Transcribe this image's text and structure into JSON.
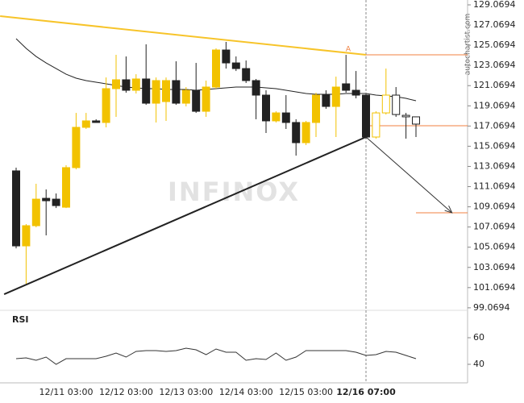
{
  "chart_data": {
    "type": "candlestick",
    "watermark": "INFINOX",
    "credit": "autochartist.com",
    "annotation": "A",
    "categories": [
      null,
      null,
      null,
      null,
      null,
      "12/11 03:00",
      null,
      null,
      null,
      null,
      null,
      "12/12 03:00",
      null,
      null,
      null,
      null,
      null,
      "12/13 03:00",
      null,
      null,
      null,
      null,
      null,
      "12/14 03:00",
      null,
      null,
      null,
      null,
      null,
      "12/15 03:00",
      null,
      null,
      null,
      null,
      null,
      "12/16 07:00",
      null,
      null,
      null,
      null,
      null
    ],
    "open": [
      112.63,
      105.2,
      107.2,
      109.91,
      109.83,
      109.03,
      112.95,
      116.94,
      117.58,
      117.42,
      120.77,
      121.65,
      120.61,
      121.73,
      119.33,
      119.49,
      121.57,
      119.33,
      120.61,
      118.53,
      120.93,
      124.6,
      123.32,
      122.76,
      121.57,
      120.13,
      117.58,
      118.37,
      117.42,
      115.42,
      117.42,
      120.13,
      119.01,
      121.25,
      120.61,
      120.13,
      115.98,
      118.37,
      120.13,
      118.13,
      117.98
    ],
    "high": [
      112.95,
      107.36,
      111.35,
      110.79,
      110.39,
      113.19,
      118.37,
      118.37,
      117.74,
      121.88,
      124.12,
      123.96,
      122.2,
      125.16,
      121.88,
      121.88,
      123.48,
      120.93,
      123.32,
      121.57,
      124.76,
      125.4,
      123.96,
      123.56,
      121.73,
      120.61,
      118.53,
      120.13,
      117.74,
      117.58,
      120.37,
      120.61,
      121.96,
      124.12,
      122.52,
      120.21,
      118.53,
      122.76,
      120.93,
      118.37,
      117.98
    ],
    "low": [
      104.96,
      101.45,
      107.04,
      106.24,
      108.95,
      108.95,
      112.78,
      116.78,
      117.42,
      116.94,
      117.98,
      120.37,
      120.29,
      119.17,
      117.42,
      117.58,
      119.17,
      119.01,
      118.37,
      117.98,
      120.77,
      122.76,
      122.52,
      121.33,
      117.74,
      116.38,
      117.42,
      116.78,
      114.14,
      115.18,
      115.98,
      118.77,
      115.98,
      120.37,
      119.81,
      115.82,
      115.82,
      118.21,
      117.98,
      115.82,
      115.98
    ],
    "close": [
      105.2,
      107.2,
      109.83,
      109.67,
      109.19,
      112.95,
      116.94,
      117.58,
      117.42,
      120.77,
      121.65,
      120.61,
      121.73,
      119.33,
      121.57,
      121.57,
      119.33,
      120.61,
      118.53,
      120.93,
      124.6,
      123.32,
      122.76,
      121.57,
      120.13,
      117.58,
      118.37,
      117.42,
      115.42,
      117.42,
      120.13,
      119.01,
      120.93,
      120.61,
      120.13,
      115.98,
      118.37,
      120.13,
      118.21,
      117.98,
      117.26
    ],
    "moving_average": [
      125.72,
      124.76,
      123.96,
      123.32,
      122.76,
      122.2,
      121.81,
      121.57,
      121.41,
      121.25,
      121.09,
      120.93,
      120.85,
      120.77,
      120.77,
      120.69,
      120.69,
      120.69,
      120.61,
      120.69,
      120.77,
      120.85,
      120.93,
      120.93,
      120.93,
      120.85,
      120.77,
      120.61,
      120.45,
      120.29,
      120.21,
      120.21,
      120.21,
      120.29,
      120.29,
      120.29,
      120.13,
      120.05,
      119.97,
      119.81,
      119.57
    ],
    "up_color": "#f2c200",
    "down_color": "#222222",
    "ma_color": "#222222",
    "trend_lines": [
      {
        "color": "#f7c42a",
        "x": [
          -1.6,
          35
        ],
        "y": [
          127.95,
          124.12
        ]
      },
      {
        "color": "#222222",
        "x": [
          -1.2,
          35
        ],
        "y": [
          100.41,
          115.98
        ]
      },
      {
        "color": "#333333",
        "x": [
          35,
          43.6
        ],
        "y": [
          115.98,
          108.48
        ],
        "arrow": true
      }
    ],
    "levels": [
      {
        "value": 124.12,
        "from": 35,
        "color": "#f08040"
      },
      {
        "value": 117.1,
        "from": 35,
        "color": "#f08040"
      },
      {
        "value": 108.48,
        "from": 40,
        "color": "#f08040"
      }
    ],
    "ylim": [
      98.82,
      129.55
    ],
    "yticks": [
      99.0694,
      101.0694,
      103.0694,
      105.0694,
      107.0694,
      109.0694,
      111.0694,
      113.0694,
      115.0694,
      117.0694,
      119.0694,
      121.0694,
      123.0694,
      125.0694,
      127.0694,
      129.0694
    ],
    "rsi": {
      "label": "RSI",
      "color": "#333333",
      "ylim": [
        30,
        80
      ],
      "yticks": [
        40,
        60
      ],
      "values": [
        44.24,
        44.85,
        43.03,
        45.45,
        40.0,
        44.24,
        44.24,
        44.24,
        44.24,
        46.06,
        48.48,
        45.45,
        49.7,
        50.3,
        50.3,
        49.7,
        50.3,
        52.12,
        50.91,
        47.27,
        51.52,
        49.09,
        49.09,
        43.03,
        44.24,
        43.64,
        48.48,
        43.03,
        45.45,
        50.3,
        50.3,
        50.3,
        50.3,
        50.3,
        49.09,
        46.67,
        47.27,
        49.7,
        49.09,
        46.67,
        44.24
      ]
    }
  }
}
